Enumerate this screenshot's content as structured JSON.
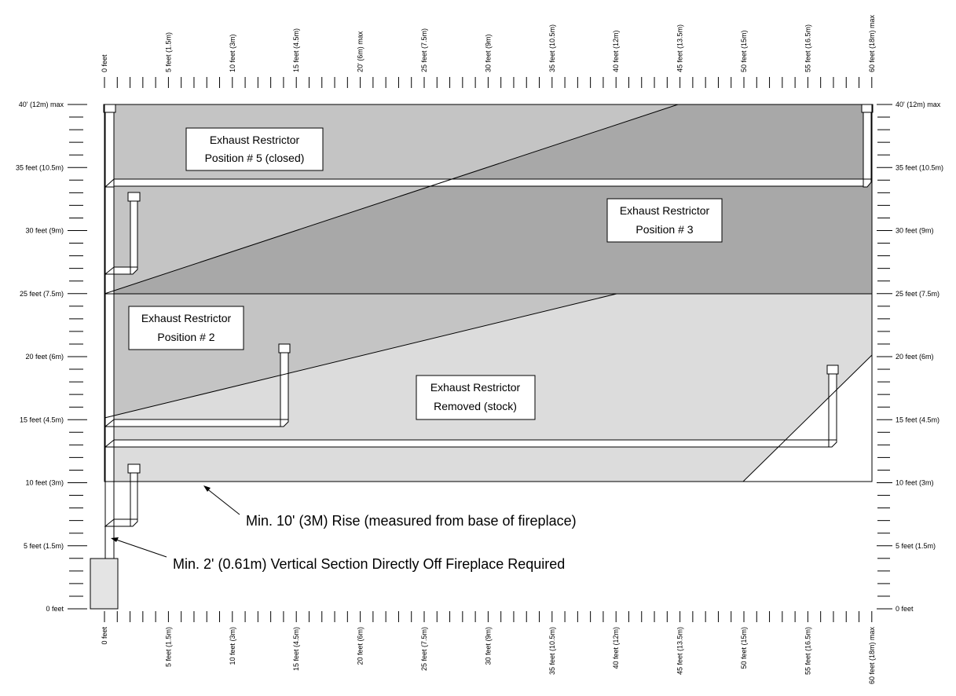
{
  "axis": {
    "x_labels": [
      {
        "value": 0,
        "label": "0 feet"
      },
      {
        "value": 5,
        "label": "5 feet (1.5m)"
      },
      {
        "value": 10,
        "label": "10 feet (3m)"
      },
      {
        "value": 15,
        "label": "15 feet (4.5m)"
      },
      {
        "value": 20,
        "label": "20' (6m) max",
        "bottom_label": "20 feet (6m)"
      },
      {
        "value": 25,
        "label": "25 feet (7.5m)"
      },
      {
        "value": 30,
        "label": "30 feet (9m)"
      },
      {
        "value": 35,
        "label": "35 feet (10.5m)"
      },
      {
        "value": 40,
        "label": "40 feet (12m)"
      },
      {
        "value": 45,
        "label": "45 feet (13.5m)"
      },
      {
        "value": 50,
        "label": "50 feet (15m)"
      },
      {
        "value": 55,
        "label": "55 feet (16.5m)"
      },
      {
        "value": 60,
        "label": "60 feet (18m) max"
      }
    ],
    "y_left_labels": [
      {
        "value": 0,
        "label": "0 feet"
      },
      {
        "value": 5,
        "label": "5 feet (1.5m)"
      },
      {
        "value": 10,
        "label": "10 feet (3m)"
      },
      {
        "value": 15,
        "label": "15 feet (4.5m)"
      },
      {
        "value": 20,
        "label": "20 feet (6m)"
      },
      {
        "value": 25,
        "label": "25 feet (7.5m)"
      },
      {
        "value": 30,
        "label": "30 feet (9m)"
      },
      {
        "value": 35,
        "label": "35 feet (10.5m)"
      },
      {
        "value": 40,
        "label": "40' (12m) max"
      }
    ],
    "y_right_labels": [
      {
        "value": 0,
        "label": "0 feet"
      },
      {
        "value": 5,
        "label": "5 feet  (1.5m)"
      },
      {
        "value": 10,
        "label": "10 feet (3m)"
      },
      {
        "value": 15,
        "label": "15 feet (4.5m)"
      },
      {
        "value": 20,
        "label": "20 feet (6m)"
      },
      {
        "value": 25,
        "label": "25 feet (7.5m)"
      },
      {
        "value": 30,
        "label": "30 feet (9m)"
      },
      {
        "value": 35,
        "label": "35 feet (10.5m)"
      },
      {
        "value": 40,
        "label": "40' (12m) max"
      }
    ]
  },
  "zones": {
    "position5": {
      "line1": "Exhaust Restrictor",
      "line2": "Position # 5 (closed)"
    },
    "position3": {
      "line1": "Exhaust Restrictor",
      "line2": "Position # 3"
    },
    "position2": {
      "line1": "Exhaust Restrictor",
      "line2": "Position # 2"
    },
    "removed": {
      "line1": "Exhaust Restrictor",
      "line2": "Removed (stock)"
    }
  },
  "notes": {
    "min_rise": "Min. 10' (3M) Rise (measured from base of fireplace)",
    "min_vertical": "Min. 2' (0.61m) Vertical Section Directly Off Fireplace Required"
  },
  "colors": {
    "zone_light": "#dcdcdc",
    "zone_medium": "#c4c4c4",
    "zone_dark": "#a8a8a8",
    "fireplace": "#e4e4e4",
    "pipe": "#ffffff"
  }
}
